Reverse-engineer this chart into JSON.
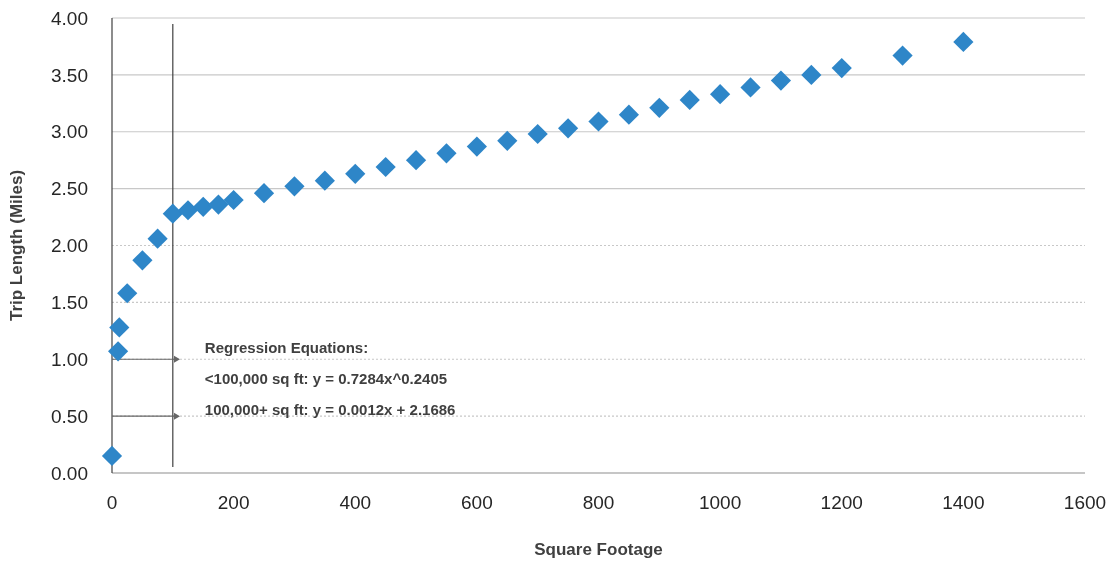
{
  "chart_data": {
    "type": "scatter",
    "xlabel": "Square Footage",
    "ylabel": "Trip Length (Miles)",
    "xlim": [
      0,
      1600
    ],
    "xticks": [
      0,
      200,
      400,
      600,
      800,
      1000,
      1200,
      1400,
      1600
    ],
    "ylim": [
      0,
      4
    ],
    "yticks": [
      {
        "value": 0,
        "label": "0.00"
      },
      {
        "value": 0.5,
        "label": "0.50"
      },
      {
        "value": 1,
        "label": "1.00"
      },
      {
        "value": 1.5,
        "label": "1.50"
      },
      {
        "value": 2,
        "label": "2.00"
      },
      {
        "value": 2.5,
        "label": "2.50"
      },
      {
        "value": 3,
        "label": "3.00"
      },
      {
        "value": 3.5,
        "label": "3.50"
      },
      {
        "value": 4,
        "label": "4.00"
      }
    ],
    "grid": "y",
    "marker": "diamond",
    "ref_lines": [
      {
        "axis": "x",
        "value": 100,
        "color": "#404040"
      }
    ],
    "annotations": [
      "Regression Equations:",
      "<100,000 sq ft: y = 0.7284x^0.2405",
      "100,000+ sq ft: y = 0.0012x + 2.1686"
    ],
    "series": [
      {
        "color": "#2e86c8",
        "x": [
          0,
          10,
          12,
          25,
          50,
          75,
          100,
          125,
          150,
          175,
          200,
          250,
          300,
          350,
          400,
          450,
          500,
          550,
          600,
          650,
          700,
          750,
          800,
          850,
          900,
          950,
          1000,
          1050,
          1100,
          1150,
          1200,
          1300,
          1400
        ],
        "values": [
          0.15,
          1.07,
          1.28,
          1.58,
          1.87,
          2.06,
          2.28,
          2.31,
          2.34,
          2.36,
          2.4,
          2.46,
          2.52,
          2.57,
          2.63,
          2.69,
          2.75,
          2.81,
          2.87,
          2.92,
          2.98,
          3.03,
          3.09,
          3.15,
          3.21,
          3.28,
          3.33,
          3.39,
          3.45,
          3.5,
          3.56,
          3.67,
          3.79
        ]
      }
    ]
  }
}
